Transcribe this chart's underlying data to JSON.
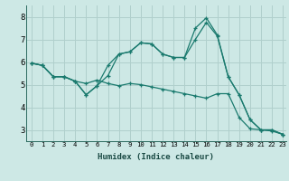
{
  "xlabel": "Humidex (Indice chaleur)",
  "background_color": "#cde8e5",
  "line_color": "#1a7a6e",
  "grid_color": "#b0cfcc",
  "xlim": [
    -0.5,
    23.3
  ],
  "ylim": [
    2.5,
    8.5
  ],
  "xticks": [
    0,
    1,
    2,
    3,
    4,
    5,
    6,
    7,
    8,
    9,
    10,
    11,
    12,
    13,
    14,
    15,
    16,
    17,
    18,
    19,
    20,
    21,
    22,
    23
  ],
  "yticks": [
    3,
    4,
    5,
    6,
    7,
    8
  ],
  "line1_x": [
    0,
    1,
    2,
    3,
    4,
    5,
    6,
    7,
    8,
    9,
    10,
    11,
    12,
    13,
    14,
    15,
    16,
    17,
    18,
    19,
    20,
    21,
    22,
    23
  ],
  "line1_y": [
    5.95,
    5.85,
    5.35,
    5.35,
    5.15,
    5.05,
    5.2,
    5.05,
    4.95,
    5.05,
    5.0,
    4.9,
    4.8,
    4.7,
    4.6,
    4.5,
    4.4,
    4.6,
    4.6,
    3.55,
    3.05,
    3.0,
    2.95,
    2.8
  ],
  "line2_x": [
    0,
    1,
    2,
    3,
    4,
    5,
    6,
    7,
    8,
    9,
    10,
    11,
    12,
    13,
    14,
    15,
    16,
    17,
    18,
    19,
    20,
    21,
    22,
    23
  ],
  "line2_y": [
    5.95,
    5.85,
    5.35,
    5.35,
    5.15,
    4.55,
    4.95,
    5.85,
    6.35,
    6.45,
    6.85,
    6.8,
    6.35,
    6.2,
    6.2,
    7.0,
    7.75,
    7.15,
    5.35,
    4.55,
    3.45,
    3.0,
    3.0,
    2.8
  ],
  "line3_x": [
    0,
    1,
    2,
    3,
    4,
    5,
    6,
    7,
    8,
    9,
    10,
    11,
    12,
    13,
    14,
    15,
    16,
    17,
    18,
    19,
    20,
    21,
    22,
    23
  ],
  "line3_y": [
    5.95,
    5.85,
    5.35,
    5.35,
    5.15,
    4.55,
    4.95,
    5.4,
    6.35,
    6.45,
    6.85,
    6.8,
    6.35,
    6.2,
    6.2,
    7.5,
    7.95,
    7.2,
    5.35,
    4.55,
    3.45,
    3.0,
    3.0,
    2.8
  ]
}
